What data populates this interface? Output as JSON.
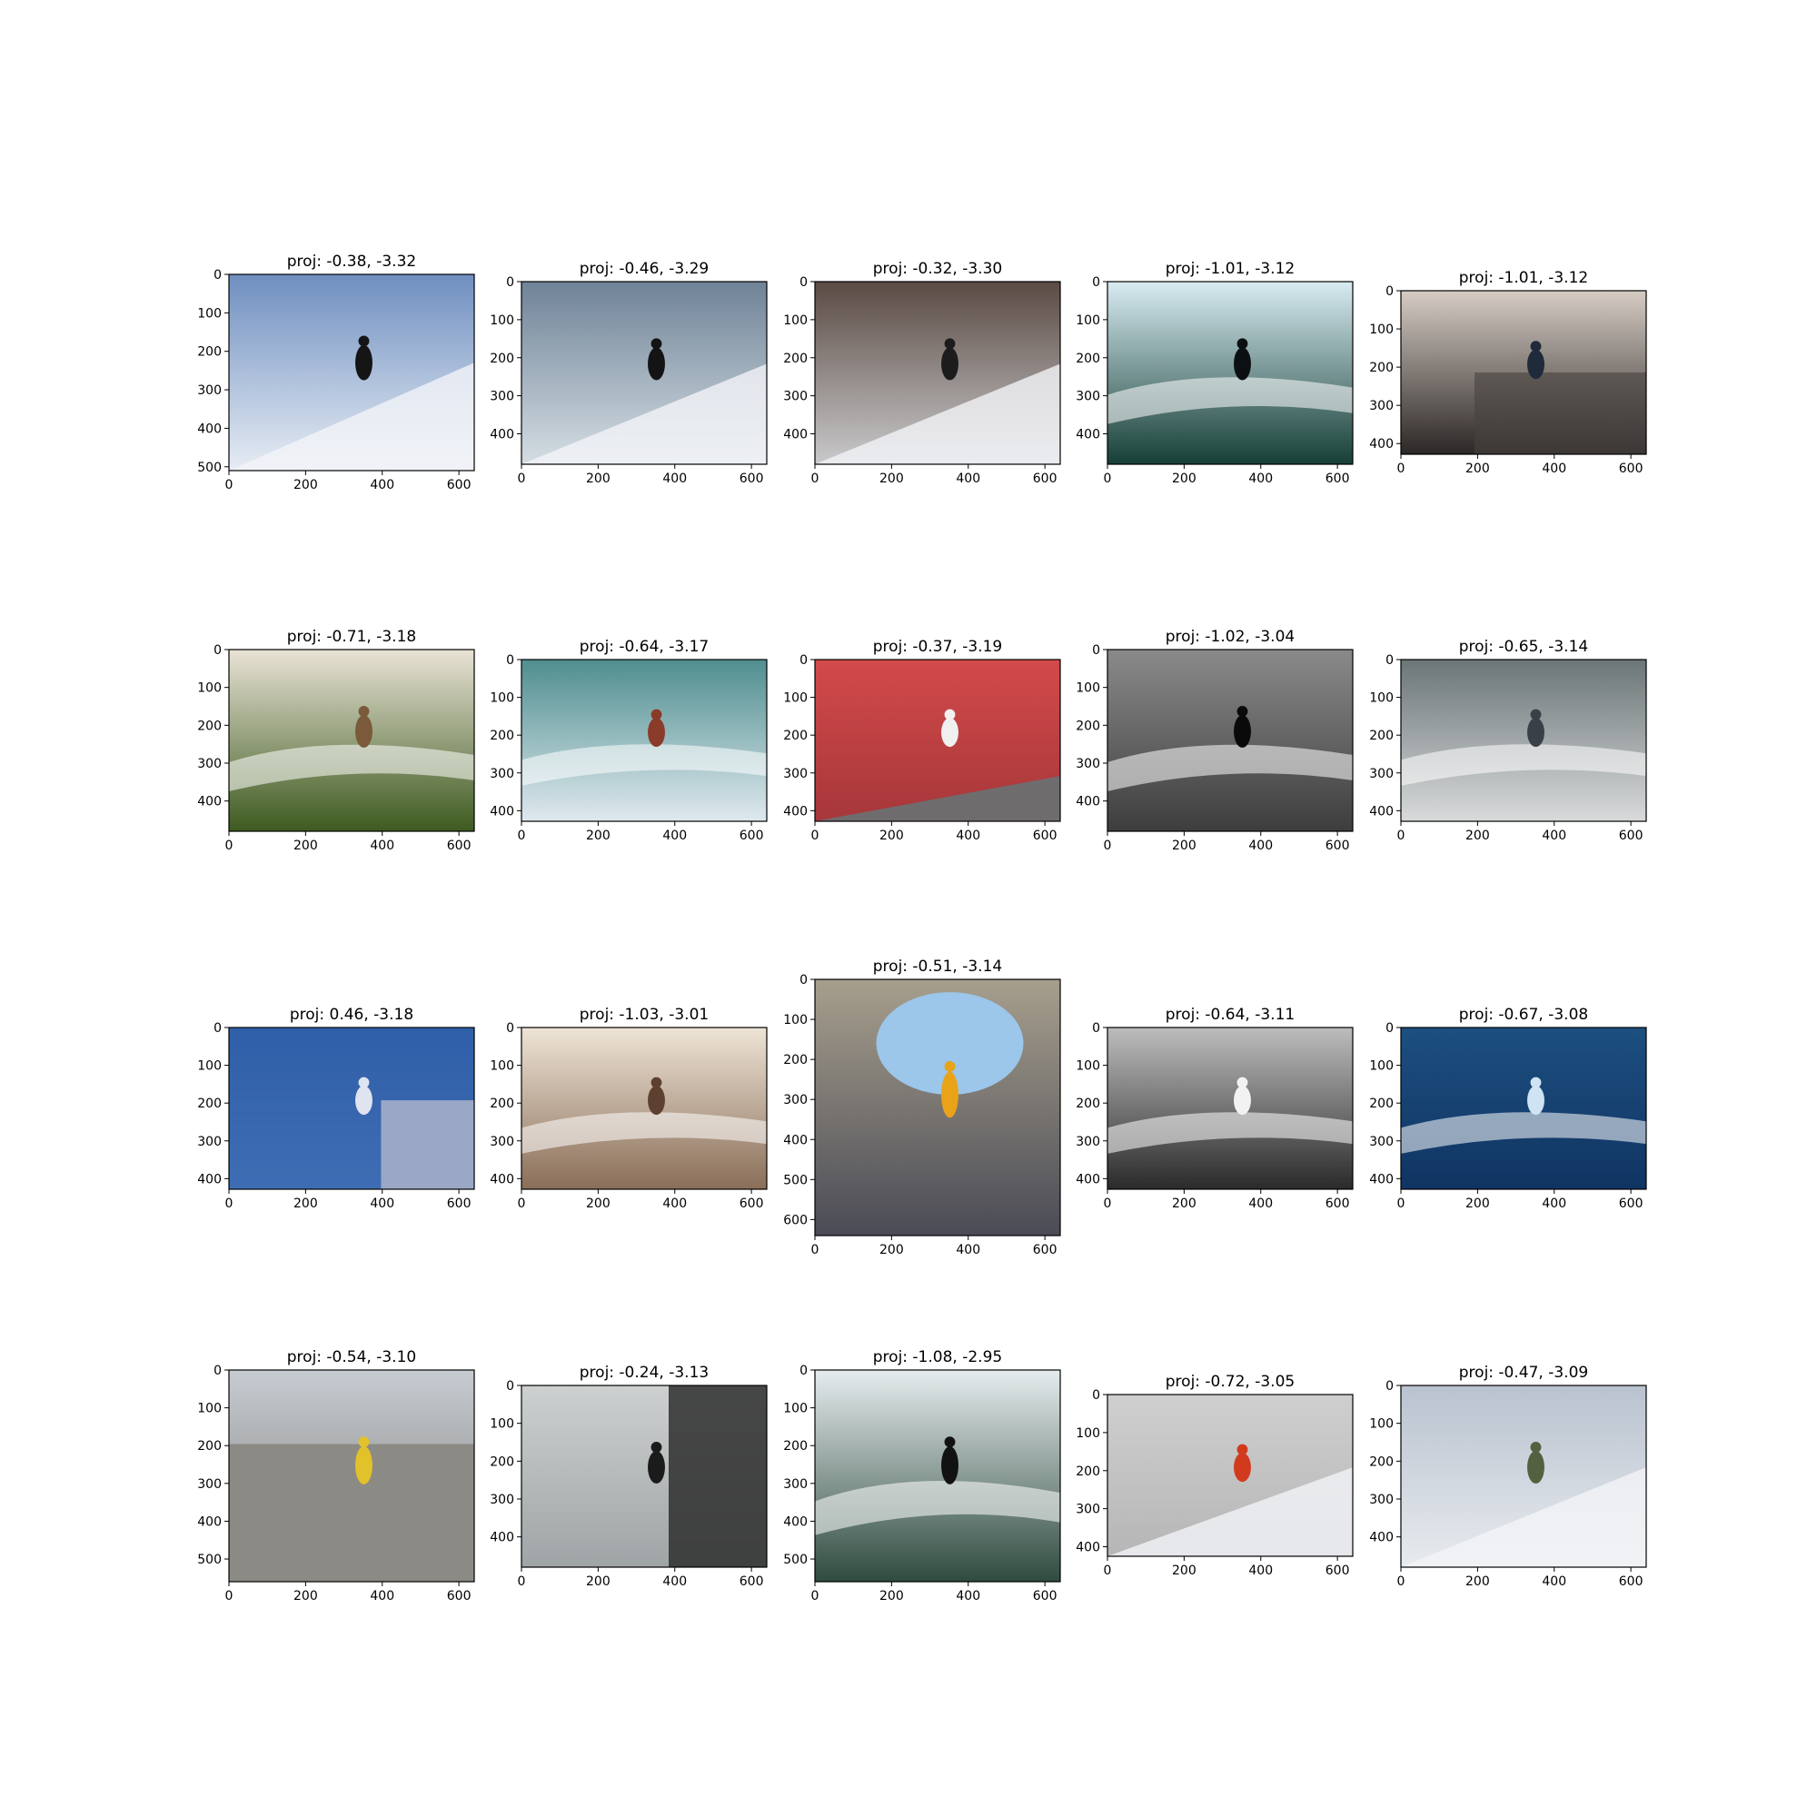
{
  "panels": [
    {
      "title": "proj: -0.38, -3.32",
      "xticks": [
        "0",
        "200",
        "400",
        "600"
      ],
      "yticks": [
        "0",
        "100",
        "200",
        "300",
        "400",
        "500"
      ],
      "scene": "ski jump off snowy rock",
      "palette": {
        "top": "#6f8fc0",
        "bottom": "#e6ecf4",
        "accent": "#151515"
      }
    },
    {
      "title": "proj: -0.46, -3.29",
      "xticks": [
        "0",
        "200",
        "400",
        "600"
      ],
      "yticks": [
        "0",
        "100",
        "200",
        "300",
        "400"
      ],
      "scene": "skier on snowy ridge",
      "palette": {
        "top": "#6f8397",
        "bottom": "#d4dde3",
        "accent": "#141414"
      }
    },
    {
      "title": "proj: -0.32, -3.30",
      "xticks": [
        "0",
        "200",
        "400",
        "600"
      ],
      "yticks": [
        "0",
        "100",
        "200",
        "300",
        "400"
      ],
      "scene": "skier on grey snow slope",
      "palette": {
        "top": "#5a4a43",
        "bottom": "#c9c9cb",
        "accent": "#1c1c1c"
      }
    },
    {
      "title": "proj: -1.01, -3.12",
      "xticks": [
        "0",
        "200",
        "400",
        "600"
      ],
      "yticks": [
        "0",
        "100",
        "200",
        "300",
        "400"
      ],
      "scene": "surfer in green barrel wave",
      "palette": {
        "top": "#d8ecf2",
        "bottom": "#163e36",
        "accent": "#0c1012"
      }
    },
    {
      "title": "proj: -1.01, -3.12",
      "xticks": [
        "0",
        "200",
        "400",
        "600"
      ],
      "yticks": [
        "0",
        "100",
        "200",
        "300",
        "400"
      ],
      "scene": "skateboarder blurred by rail",
      "palette": {
        "top": "#d6ccc4",
        "bottom": "#2b2726",
        "accent": "#1f2a3a"
      }
    },
    {
      "title": "proj: -0.71, -3.18",
      "xticks": [
        "0",
        "200",
        "400",
        "600"
      ],
      "yticks": [
        "0",
        "100",
        "200",
        "300",
        "400"
      ],
      "scene": "surfer wiping out in splash",
      "palette": {
        "top": "#e9e3d6",
        "bottom": "#3d5a1f",
        "accent": "#7a5a3a"
      }
    },
    {
      "title": "proj: -0.64, -3.17",
      "xticks": [
        "0",
        "200",
        "400",
        "600"
      ],
      "yticks": [
        "0",
        "100",
        "200",
        "300",
        "400"
      ],
      "scene": "surfer on turquoise water",
      "palette": {
        "top": "#4f8e8f",
        "bottom": "#dfe9ef",
        "accent": "#8a3b2a"
      }
    },
    {
      "title": "proj: -0.37, -3.19",
      "xticks": [
        "0",
        "200",
        "400",
        "600"
      ],
      "yticks": [
        "0",
        "100",
        "200",
        "300",
        "400"
      ],
      "scene": "skater on red wall",
      "palette": {
        "top": "#d34a4a",
        "bottom": "#a6373a",
        "accent": "#f0f0f0"
      }
    },
    {
      "title": "proj: -1.02, -3.04",
      "xticks": [
        "0",
        "200",
        "400",
        "600"
      ],
      "yticks": [
        "0",
        "100",
        "200",
        "300",
        "400"
      ],
      "scene": "surfer carving black and white",
      "palette": {
        "top": "#8a8a8a",
        "bottom": "#3d3d3d",
        "accent": "#0a0a0a"
      }
    },
    {
      "title": "proj: -0.65, -3.14",
      "xticks": [
        "0",
        "200",
        "400",
        "600"
      ],
      "yticks": [
        "0",
        "100",
        "200",
        "300",
        "400"
      ],
      "scene": "surfer riding whitewater",
      "palette": {
        "top": "#6b7577",
        "bottom": "#d8dadb",
        "accent": "#3a4047"
      }
    },
    {
      "title": "proj: 0.46, -3.18",
      "xticks": [
        "0",
        "200",
        "400",
        "600"
      ],
      "yticks": [
        "0",
        "100",
        "200",
        "300",
        "400"
      ],
      "scene": "man flying kite blue sky",
      "palette": {
        "top": "#2f5fa8",
        "bottom": "#3f6db4",
        "accent": "#e0e4f0"
      }
    },
    {
      "title": "proj: -1.03, -3.01",
      "xticks": [
        "0",
        "200",
        "400",
        "600"
      ],
      "yticks": [
        "0",
        "100",
        "200",
        "300",
        "400"
      ],
      "scene": "surfer in sepia foam",
      "palette": {
        "top": "#eee4d6",
        "bottom": "#8a6e58",
        "accent": "#5e4030"
      }
    },
    {
      "title": "proj: -0.51, -3.14",
      "xticks": [
        "0",
        "200",
        "400",
        "600"
      ],
      "yticks": [
        "0",
        "100",
        "200",
        "300",
        "400",
        "500",
        "600"
      ],
      "scene": "skateboarder in pipe",
      "palette": {
        "top": "#a79f8d",
        "bottom": "#4a4b55",
        "accent": "#e8a318"
      }
    },
    {
      "title": "proj: -0.64, -3.11",
      "xticks": [
        "0",
        "200",
        "400",
        "600"
      ],
      "yticks": [
        "0",
        "100",
        "200",
        "300",
        "400"
      ],
      "scene": "surfer grey ocean wave",
      "palette": {
        "top": "#bdbdbd",
        "bottom": "#2a2a2a",
        "accent": "#f2f2f2"
      }
    },
    {
      "title": "proj: -0.67, -3.08",
      "xticks": [
        "0",
        "200",
        "400",
        "600"
      ],
      "yticks": [
        "0",
        "100",
        "200",
        "300",
        "400"
      ],
      "scene": "surfer on deep blue water",
      "palette": {
        "top": "#1c4f80",
        "bottom": "#103462",
        "accent": "#cfe3f3"
      }
    },
    {
      "title": "proj: -0.54, -3.10",
      "xticks": [
        "0",
        "200",
        "400",
        "600"
      ],
      "yticks": [
        "0",
        "100",
        "200",
        "300",
        "400",
        "500"
      ],
      "scene": "skater in empty pool",
      "palette": {
        "top": "#c7ccd2",
        "bottom": "#7f7d77",
        "accent": "#e2c22a"
      }
    },
    {
      "title": "proj: -0.24, -3.13",
      "xticks": [
        "0",
        "200",
        "400",
        "600"
      ],
      "yticks": [
        "0",
        "100",
        "200",
        "300",
        "400"
      ],
      "scene": "airplane wing through window",
      "palette": {
        "top": "#cdd0d0",
        "bottom": "#9fa4a6",
        "accent": "#1b1b1b"
      }
    },
    {
      "title": "proj: -1.08, -2.95",
      "xticks": [
        "0",
        "200",
        "400",
        "600"
      ],
      "yticks": [
        "0",
        "100",
        "200",
        "300",
        "400",
        "500"
      ],
      "scene": "surfer in wetsuit river wave",
      "palette": {
        "top": "#e6ecee",
        "bottom": "#2f4b3f",
        "accent": "#121212"
      }
    },
    {
      "title": "proj: -0.72, -3.05",
      "xticks": [
        "0",
        "200",
        "400",
        "600"
      ],
      "yticks": [
        "0",
        "100",
        "200",
        "300",
        "400"
      ],
      "scene": "skier in red on snow",
      "palette": {
        "top": "#cfcfcf",
        "bottom": "#b6b6b6",
        "accent": "#d23a1e"
      }
    },
    {
      "title": "proj: -0.47, -3.09",
      "xticks": [
        "0",
        "200",
        "400",
        "600"
      ],
      "yticks": [
        "0",
        "100",
        "200",
        "300",
        "400"
      ],
      "scene": "snowboarder green jacket",
      "palette": {
        "top": "#b9c2cf",
        "bottom": "#e7ebee",
        "accent": "#556040"
      }
    }
  ]
}
